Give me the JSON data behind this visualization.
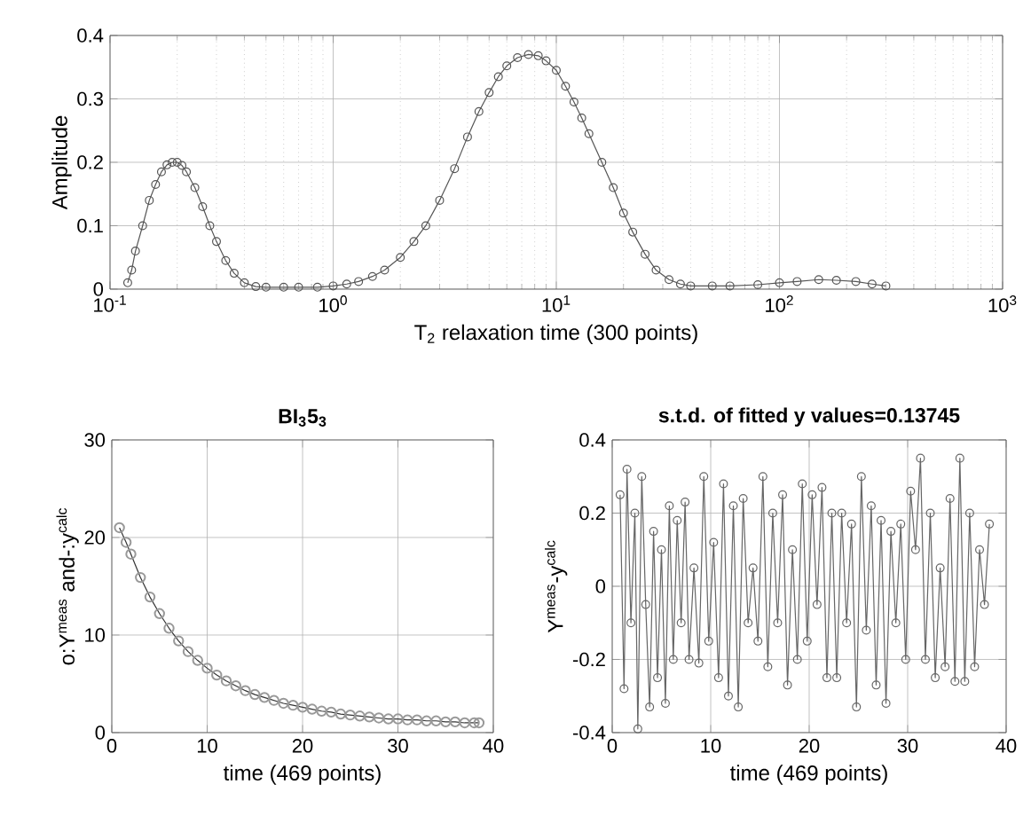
{
  "chart_data": [
    {
      "type": "line",
      "xlabel": "T$_{2}$ relaxation time  (300 points)",
      "ylabel": "Amplitude",
      "log": "x",
      "grid": true,
      "marker": "circle",
      "xlim": [
        0.1,
        1000
      ],
      "xticks": [
        {
          "value": 0.1,
          "label": "10$^{-1}$"
        },
        {
          "value": 1,
          "label": "10$^{0}$"
        },
        {
          "value": 10,
          "label": "10$^{1}$"
        },
        {
          "value": 100,
          "label": "10$^{2}$"
        },
        {
          "value": 1000,
          "label": "10$^{3}$"
        }
      ],
      "ylim": [
        0,
        0.4
      ],
      "yticks": [
        0,
        0.1,
        0.2,
        0.3,
        0.4
      ],
      "series": [
        {
          "color": "#555555",
          "x": [
            0.12,
            0.125,
            0.13,
            0.14,
            0.15,
            0.16,
            0.17,
            0.18,
            0.19,
            0.2,
            0.21,
            0.22,
            0.24,
            0.26,
            0.28,
            0.3,
            0.33,
            0.36,
            0.4,
            0.45,
            0.5,
            0.6,
            0.7,
            0.85,
            1.0,
            1.15,
            1.3,
            1.5,
            1.7,
            2.0,
            2.3,
            2.6,
            3.0,
            3.5,
            4.0,
            4.5,
            5.0,
            5.5,
            6.0,
            6.7,
            7.5,
            8.3,
            9.0,
            10,
            11,
            12,
            13,
            14,
            16,
            18,
            20,
            22,
            25,
            28,
            32,
            36,
            40,
            50,
            60,
            80,
            100,
            120,
            150,
            180,
            220,
            260,
            300
          ],
          "values": [
            0.01,
            0.03,
            0.06,
            0.1,
            0.14,
            0.165,
            0.185,
            0.196,
            0.2,
            0.2,
            0.195,
            0.185,
            0.16,
            0.13,
            0.1,
            0.075,
            0.045,
            0.025,
            0.01,
            0.004,
            0.003,
            0.003,
            0.003,
            0.003,
            0.005,
            0.008,
            0.012,
            0.02,
            0.03,
            0.05,
            0.075,
            0.1,
            0.14,
            0.19,
            0.24,
            0.28,
            0.31,
            0.335,
            0.352,
            0.365,
            0.37,
            0.368,
            0.36,
            0.345,
            0.32,
            0.295,
            0.27,
            0.245,
            0.2,
            0.16,
            0.12,
            0.09,
            0.055,
            0.03,
            0.015,
            0.008,
            0.005,
            0.005,
            0.005,
            0.007,
            0.01,
            0.012,
            0.015,
            0.014,
            0.012,
            0.008,
            0.005
          ]
        }
      ]
    },
    {
      "type": "scatter",
      "title": "BI$_{3}$5$_{3}$",
      "xlabel": "time  (469 points)",
      "ylabel": "o:Y$^{meas}$ and-:y$^{calc}$",
      "grid": true,
      "xlim": [
        0,
        40
      ],
      "xticks": [
        0,
        10,
        20,
        30,
        40
      ],
      "ylim": [
        0,
        30
      ],
      "yticks": [
        0,
        10,
        20,
        30
      ],
      "x": [
        0.8,
        1.5,
        2,
        3,
        4,
        5,
        6,
        7,
        8,
        9,
        10,
        11,
        12,
        13,
        14,
        15,
        16,
        17,
        18,
        19,
        20,
        21,
        22,
        23,
        24,
        25,
        26,
        27,
        28,
        29,
        30,
        31,
        32,
        33,
        34,
        35,
        36,
        37,
        38,
        38.5
      ],
      "series": [
        {
          "type": "scatter",
          "marker": "circle",
          "color": "#999999",
          "values": [
            21,
            19.5,
            18.3,
            15.9,
            13.9,
            12.2,
            10.7,
            9.4,
            8.3,
            7.4,
            6.6,
            5.9,
            5.3,
            4.8,
            4.3,
            3.9,
            3.6,
            3.3,
            3.0,
            2.8,
            2.6,
            2.4,
            2.2,
            2.1,
            1.9,
            1.8,
            1.7,
            1.6,
            1.5,
            1.4,
            1.4,
            1.3,
            1.3,
            1.2,
            1.2,
            1.1,
            1.1,
            1.0,
            1.0,
            1.0
          ]
        },
        {
          "type": "line",
          "marker": "none",
          "color": "#333333",
          "values": [
            21,
            19.5,
            18.3,
            15.9,
            13.9,
            12.2,
            10.7,
            9.4,
            8.3,
            7.4,
            6.6,
            5.9,
            5.3,
            4.8,
            4.3,
            3.9,
            3.6,
            3.3,
            3.0,
            2.8,
            2.6,
            2.4,
            2.2,
            2.1,
            1.9,
            1.8,
            1.7,
            1.6,
            1.5,
            1.4,
            1.4,
            1.3,
            1.3,
            1.2,
            1.2,
            1.1,
            1.1,
            1.0,
            1.0,
            1.0
          ]
        }
      ]
    },
    {
      "type": "line",
      "title": "s.t.d. of fitted y values=0.13745",
      "xlabel": "time  (469 points)",
      "ylabel": "Y$^{meas}$-y$^{calc}$",
      "grid": true,
      "marker": "circle",
      "xlim": [
        0,
        40
      ],
      "xticks": [
        0,
        10,
        20,
        30,
        40
      ],
      "ylim": [
        -0.4,
        0.4
      ],
      "yticks": [
        -0.4,
        -0.2,
        0,
        0.2,
        0.4
      ],
      "series": [
        {
          "color": "#666666",
          "x": [
            0.8,
            1.2,
            1.5,
            1.9,
            2.3,
            2.6,
            3.0,
            3.4,
            3.8,
            4.2,
            4.6,
            5.0,
            5.4,
            5.8,
            6.2,
            6.6,
            7.0,
            7.4,
            7.8,
            8.3,
            8.8,
            9.3,
            9.8,
            10.3,
            10.8,
            11.3,
            11.8,
            12.3,
            12.8,
            13.3,
            13.8,
            14.3,
            14.8,
            15.3,
            15.8,
            16.3,
            16.8,
            17.3,
            17.8,
            18.3,
            18.8,
            19.3,
            19.8,
            20.3,
            20.8,
            21.3,
            21.8,
            22.3,
            22.8,
            23.3,
            23.8,
            24.3,
            24.8,
            25.3,
            25.8,
            26.3,
            26.8,
            27.3,
            27.8,
            28.3,
            28.8,
            29.3,
            29.8,
            30.3,
            30.8,
            31.3,
            31.8,
            32.3,
            32.8,
            33.3,
            33.8,
            34.3,
            34.8,
            35.3,
            35.8,
            36.3,
            36.8,
            37.3,
            37.8,
            38.3
          ],
          "values": [
            0.25,
            -0.28,
            0.32,
            -0.1,
            0.2,
            -0.39,
            0.3,
            -0.05,
            -0.33,
            0.15,
            -0.25,
            0.1,
            -0.32,
            0.22,
            -0.2,
            0.18,
            -0.1,
            0.23,
            -0.2,
            0.05,
            -0.21,
            0.3,
            -0.15,
            0.12,
            -0.25,
            0.28,
            -0.3,
            0.22,
            -0.33,
            0.24,
            -0.1,
            0.05,
            -0.15,
            0.3,
            -0.22,
            0.2,
            -0.1,
            0.25,
            -0.27,
            0.1,
            -0.2,
            0.28,
            -0.15,
            0.25,
            -0.05,
            0.27,
            -0.25,
            0.2,
            -0.25,
            0.2,
            -0.1,
            0.17,
            -0.33,
            0.3,
            -0.12,
            0.22,
            -0.27,
            0.18,
            -0.32,
            0.15,
            -0.1,
            0.17,
            -0.2,
            0.26,
            0.1,
            0.35,
            -0.2,
            0.2,
            -0.25,
            0.05,
            -0.22,
            0.24,
            -0.26,
            0.35,
            -0.26,
            0.2,
            -0.22,
            0.1,
            -0.05,
            0.17
          ]
        }
      ]
    }
  ]
}
